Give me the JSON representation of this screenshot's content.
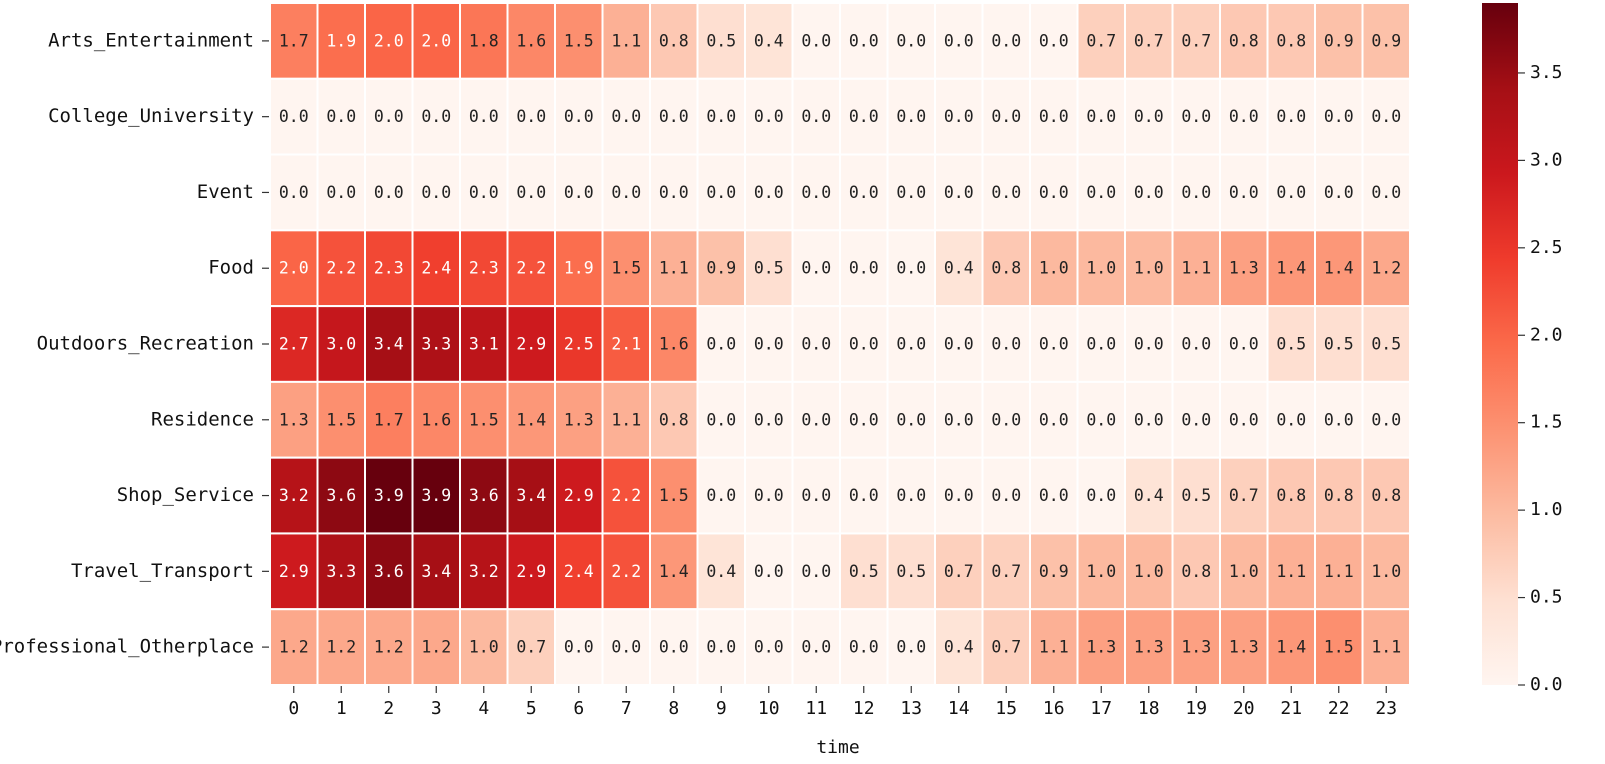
{
  "chart_data": {
    "type": "heatmap",
    "title": "",
    "xlabel": "time",
    "ylabel": "",
    "rows": [
      "Arts_Entertainment",
      "College_University",
      "Event",
      "Food",
      "Outdoors_Recreation",
      "Residence",
      "Shop_Service",
      "Travel_Transport",
      "Professional_Otherplace"
    ],
    "columns": [
      "0",
      "1",
      "2",
      "3",
      "4",
      "5",
      "6",
      "7",
      "8",
      "9",
      "10",
      "11",
      "12",
      "13",
      "14",
      "15",
      "16",
      "17",
      "18",
      "19",
      "20",
      "21",
      "22",
      "23"
    ],
    "values": [
      [
        1.7,
        1.9,
        2.0,
        2.0,
        1.8,
        1.6,
        1.5,
        1.1,
        0.8,
        0.5,
        0.4,
        0.0,
        0.0,
        0.0,
        0.0,
        0.0,
        0.0,
        0.7,
        0.7,
        0.7,
        0.8,
        0.8,
        0.9,
        0.9
      ],
      [
        0.0,
        0.0,
        0.0,
        0.0,
        0.0,
        0.0,
        0.0,
        0.0,
        0.0,
        0.0,
        0.0,
        0.0,
        0.0,
        0.0,
        0.0,
        0.0,
        0.0,
        0.0,
        0.0,
        0.0,
        0.0,
        0.0,
        0.0,
        0.0
      ],
      [
        0.0,
        0.0,
        0.0,
        0.0,
        0.0,
        0.0,
        0.0,
        0.0,
        0.0,
        0.0,
        0.0,
        0.0,
        0.0,
        0.0,
        0.0,
        0.0,
        0.0,
        0.0,
        0.0,
        0.0,
        0.0,
        0.0,
        0.0,
        0.0
      ],
      [
        2.0,
        2.2,
        2.3,
        2.4,
        2.3,
        2.2,
        1.9,
        1.5,
        1.1,
        0.9,
        0.5,
        0.0,
        0.0,
        0.0,
        0.4,
        0.8,
        1.0,
        1.0,
        1.0,
        1.1,
        1.3,
        1.4,
        1.4,
        1.2
      ],
      [
        2.7,
        3.0,
        3.4,
        3.3,
        3.1,
        2.9,
        2.5,
        2.1,
        1.6,
        0.0,
        0.0,
        0.0,
        0.0,
        0.0,
        0.0,
        0.0,
        0.0,
        0.0,
        0.0,
        0.0,
        0.0,
        0.5,
        0.5,
        0.5
      ],
      [
        1.3,
        1.5,
        1.7,
        1.6,
        1.5,
        1.4,
        1.3,
        1.1,
        0.8,
        0.0,
        0.0,
        0.0,
        0.0,
        0.0,
        0.0,
        0.0,
        0.0,
        0.0,
        0.0,
        0.0,
        0.0,
        0.0,
        0.0,
        0.0
      ],
      [
        3.2,
        3.6,
        3.9,
        3.9,
        3.6,
        3.4,
        2.9,
        2.2,
        1.5,
        0.0,
        0.0,
        0.0,
        0.0,
        0.0,
        0.0,
        0.0,
        0.0,
        0.0,
        0.4,
        0.5,
        0.7,
        0.8,
        0.8,
        0.8
      ],
      [
        2.9,
        3.3,
        3.6,
        3.4,
        3.2,
        2.9,
        2.4,
        2.2,
        1.4,
        0.4,
        0.0,
        0.0,
        0.5,
        0.5,
        0.7,
        0.7,
        0.9,
        1.0,
        1.0,
        0.8,
        1.0,
        1.1,
        1.1,
        1.0
      ],
      [
        1.2,
        1.2,
        1.2,
        1.2,
        1.0,
        0.7,
        0.0,
        0.0,
        0.0,
        0.0,
        0.0,
        0.0,
        0.0,
        0.0,
        0.4,
        0.7,
        1.1,
        1.3,
        1.3,
        1.3,
        1.3,
        1.4,
        1.5,
        1.1
      ]
    ],
    "colorbar": {
      "min": 0.0,
      "max": 3.9,
      "ticks": [
        0.0,
        0.5,
        1.0,
        1.5,
        2.0,
        2.5,
        3.0,
        3.5
      ],
      "tick_labels": [
        "0.0",
        "0.5",
        "1.0",
        "1.5",
        "2.0",
        "2.5",
        "3.0",
        "3.5"
      ]
    },
    "colormap": {
      "name": "Reds",
      "stops": [
        "#fff5f0",
        "#fee0d2",
        "#fcbba1",
        "#fc9272",
        "#fb6a4a",
        "#ef3b2c",
        "#cb181d",
        "#a50f15",
        "#67000d"
      ]
    },
    "annotations": "cell values shown with one decimal",
    "grid": false,
    "cell_border_color": "#ffffff"
  }
}
